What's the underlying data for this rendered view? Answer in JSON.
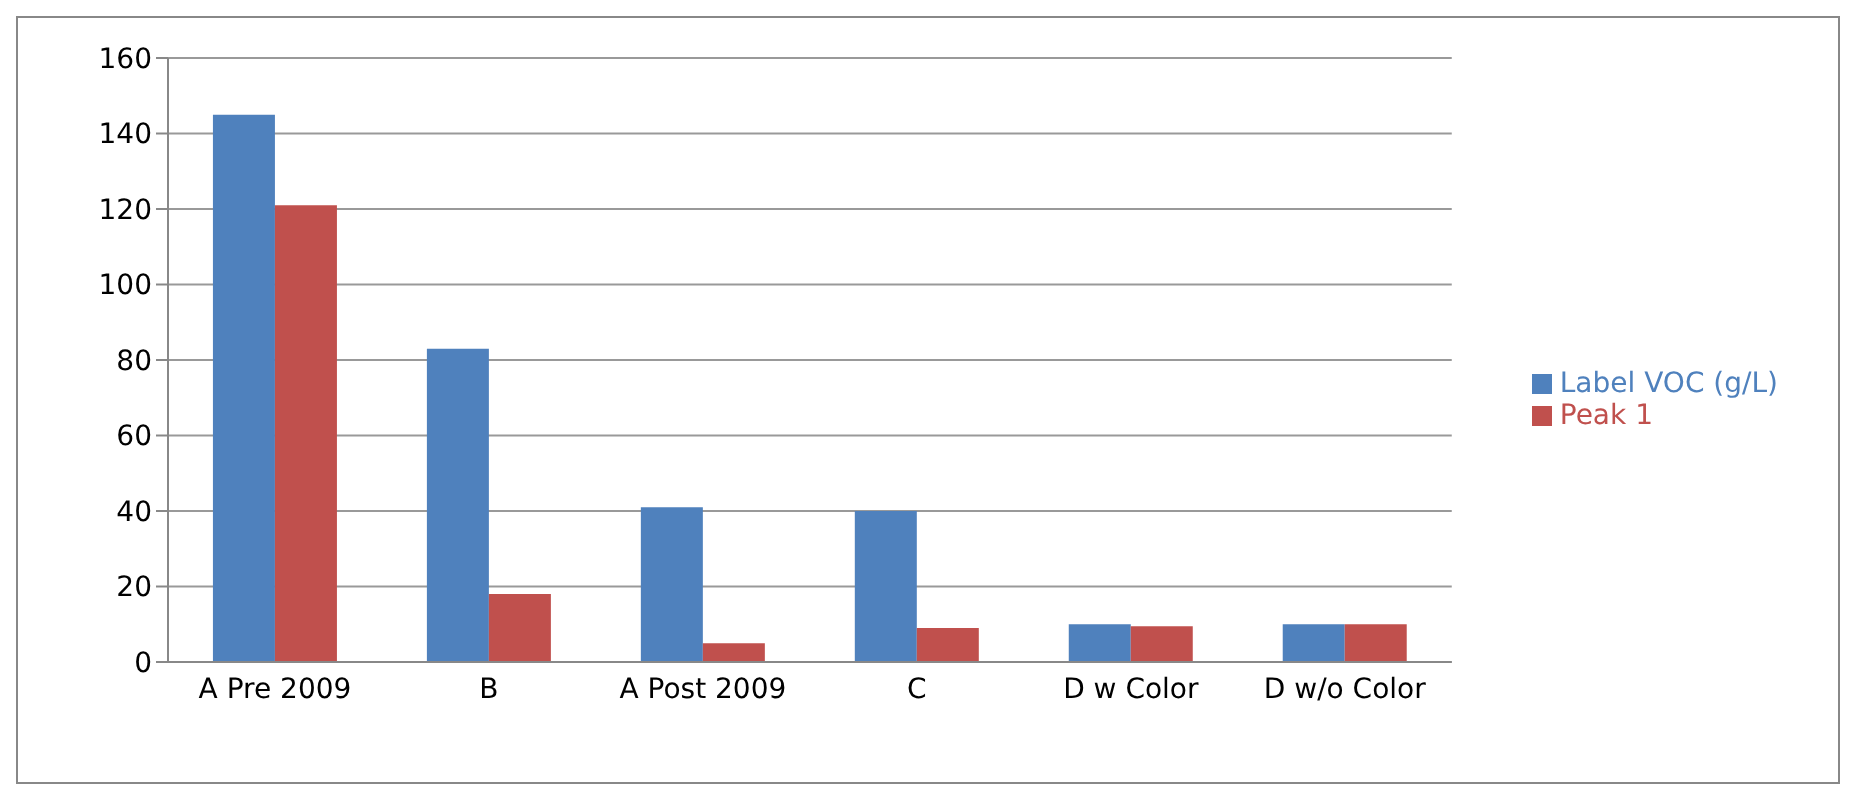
{
  "chart_data": {
    "type": "bar",
    "categories": [
      "A Pre 2009",
      "B",
      "A Post 2009",
      "C",
      "D w Color",
      "D w/o Color"
    ],
    "series": [
      {
        "name": "Label VOC (g/L)",
        "color": "#4f81bd",
        "values": [
          145,
          83,
          41,
          40,
          10,
          10
        ]
      },
      {
        "name": "Peak 1",
        "color": "#c0504d",
        "values": [
          121,
          18,
          5,
          9,
          9.5,
          10
        ]
      }
    ],
    "ylim": [
      0,
      160
    ],
    "yticks": [
      0,
      20,
      40,
      60,
      80,
      100,
      120,
      140,
      160
    ],
    "grid": "y",
    "legend": "right"
  }
}
